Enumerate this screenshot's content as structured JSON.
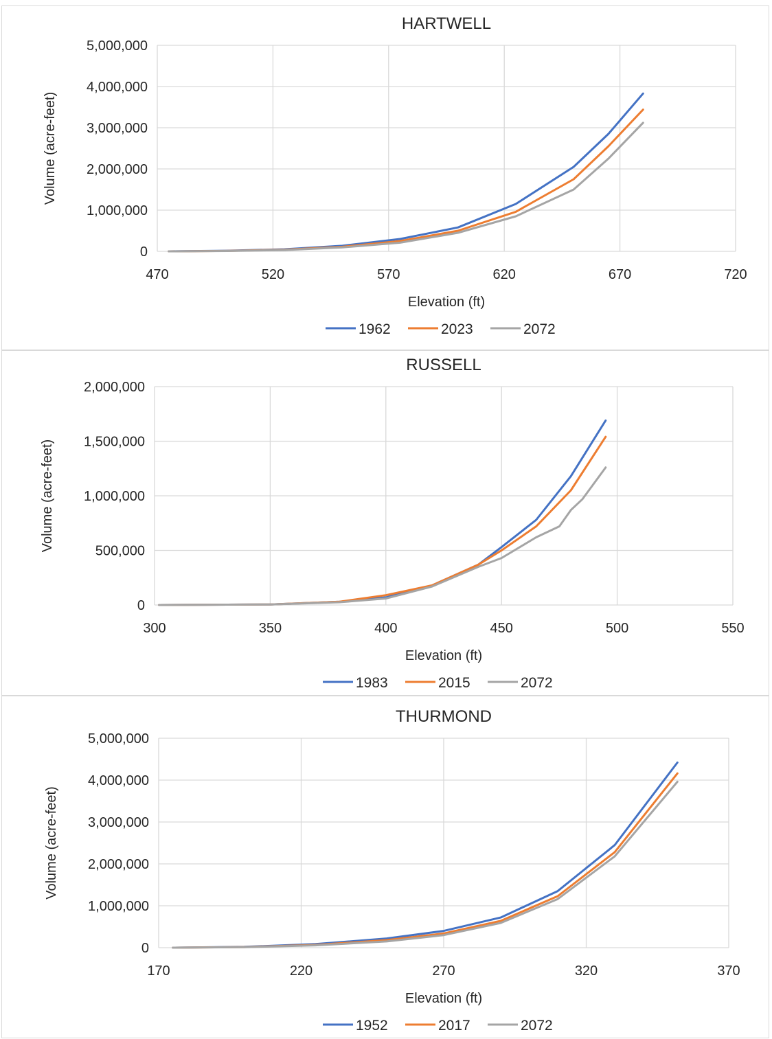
{
  "chart_data": [
    {
      "type": "line",
      "title": "HARTWELL",
      "xlabel": "Elevation (ft)",
      "ylabel": "Volume (acre-feet)",
      "xlim": [
        470,
        720
      ],
      "ylim": [
        0,
        5000000
      ],
      "x_ticks": [
        "470",
        "520",
        "570",
        "620",
        "670",
        "720"
      ],
      "y_ticks": [
        "0",
        "1,000,000",
        "2,000,000",
        "3,000,000",
        "4,000,000",
        "5,000,000"
      ],
      "grid": true,
      "legend_position": "bottom",
      "series": [
        {
          "name": "1962",
          "color": "#4472C4",
          "x": [
            475,
            500,
            525,
            550,
            575,
            600,
            625,
            650,
            665,
            680
          ],
          "y": [
            0,
            15000,
            50000,
            135000,
            300000,
            580000,
            1150000,
            2050000,
            2850000,
            3830000
          ]
        },
        {
          "name": "2023",
          "color": "#ED7D31",
          "x": [
            475,
            500,
            525,
            550,
            575,
            600,
            625,
            650,
            665,
            680
          ],
          "y": [
            0,
            10000,
            40000,
            110000,
            250000,
            500000,
            960000,
            1750000,
            2550000,
            3440000
          ]
        },
        {
          "name": "2072",
          "color": "#A5A5A5",
          "x": [
            475,
            500,
            525,
            550,
            575,
            600,
            625,
            650,
            665,
            680
          ],
          "y": [
            0,
            8000,
            32000,
            95000,
            210000,
            450000,
            850000,
            1500000,
            2250000,
            3120000
          ]
        }
      ]
    },
    {
      "type": "line",
      "title": "RUSSELL",
      "xlabel": "Elevation (ft)",
      "ylabel": "Volume (acre-feet)",
      "xlim": [
        300,
        550
      ],
      "ylim": [
        0,
        2000000
      ],
      "x_ticks": [
        "300",
        "350",
        "400",
        "450",
        "500",
        "550"
      ],
      "y_ticks": [
        "0",
        "500,000",
        "1,000,000",
        "1,500,000",
        "2,000,000"
      ],
      "grid": true,
      "legend_position": "bottom",
      "series": [
        {
          "name": "1983",
          "color": "#4472C4",
          "x": [
            302,
            350,
            380,
            400,
            420,
            440,
            450,
            465,
            480,
            495
          ],
          "y": [
            0,
            5000,
            30000,
            70000,
            180000,
            370000,
            530000,
            780000,
            1180000,
            1690000
          ]
        },
        {
          "name": "2015",
          "color": "#ED7D31",
          "x": [
            302,
            350,
            380,
            400,
            420,
            440,
            450,
            465,
            480,
            495
          ],
          "y": [
            0,
            5000,
            30000,
            90000,
            180000,
            370000,
            500000,
            720000,
            1050000,
            1540000
          ]
        },
        {
          "name": "2072",
          "color": "#A5A5A5",
          "x": [
            302,
            350,
            380,
            400,
            420,
            440,
            450,
            465,
            475,
            480,
            485,
            495
          ],
          "y": [
            0,
            5000,
            25000,
            60000,
            170000,
            350000,
            430000,
            620000,
            720000,
            870000,
            970000,
            1260000
          ]
        }
      ]
    },
    {
      "type": "line",
      "title": "THURMOND",
      "xlabel": "Elevation (ft)",
      "ylabel": "Volume (acre-feet)",
      "xlim": [
        170,
        370
      ],
      "ylim": [
        0,
        5000000
      ],
      "x_ticks": [
        "170",
        "220",
        "270",
        "320",
        "370"
      ],
      "y_ticks": [
        "0",
        "1,000,000",
        "2,000,000",
        "3,000,000",
        "4,000,000",
        "5,000,000"
      ],
      "grid": true,
      "legend_position": "bottom",
      "series": [
        {
          "name": "1952",
          "color": "#4472C4",
          "x": [
            175,
            200,
            225,
            250,
            270,
            290,
            310,
            330,
            352
          ],
          "y": [
            0,
            20000,
            85000,
            220000,
            400000,
            720000,
            1350000,
            2450000,
            4420000
          ]
        },
        {
          "name": "2017",
          "color": "#ED7D31",
          "x": [
            175,
            200,
            225,
            250,
            270,
            290,
            310,
            330,
            352
          ],
          "y": [
            0,
            15000,
            65000,
            180000,
            340000,
            640000,
            1230000,
            2280000,
            4160000
          ]
        },
        {
          "name": "2072",
          "color": "#A5A5A5",
          "x": [
            175,
            200,
            225,
            250,
            270,
            290,
            310,
            330,
            352
          ],
          "y": [
            0,
            12000,
            55000,
            150000,
            300000,
            590000,
            1160000,
            2180000,
            3960000
          ]
        }
      ]
    }
  ]
}
